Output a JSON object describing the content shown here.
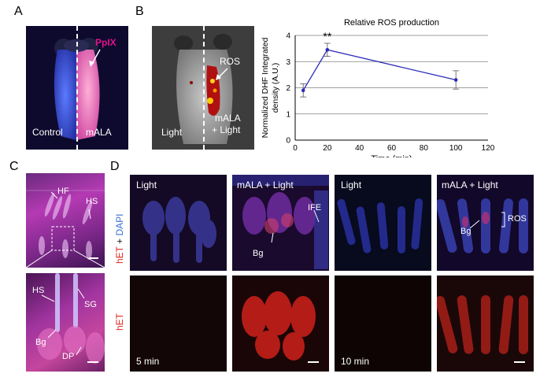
{
  "panels": {
    "A": {
      "label": "A",
      "ppix": "PpIX",
      "control": "Control",
      "treated": "mALA"
    },
    "B": {
      "label": "B",
      "ros": "ROS",
      "light": "Light",
      "treated_line1": "mALA",
      "treated_line2": "+ Light"
    },
    "C": {
      "label": "C",
      "hf": "HF",
      "hs": "HS",
      "hs2": "HS",
      "sg": "SG",
      "bg": "Bg",
      "dp": "DP"
    },
    "D": {
      "label": "D",
      "col1": "Light",
      "col2": "mALA + Light",
      "col3": "Light",
      "col4": "mALA + Light",
      "ife": "IFE",
      "bg1": "Bg",
      "bg2": "Bg",
      "ros": "ROS",
      "row1_label_red": "hET",
      "row1_label_plus": " + ",
      "row1_label_blue": "DAPI",
      "row2_label": "hET",
      "time1": "5 min",
      "time2": "10 min"
    }
  },
  "colors": {
    "pink": "#e0118a",
    "line": "#2b2bb8",
    "red_label": "#e0261d",
    "blue_label": "#3b6fd6"
  },
  "chart_data": {
    "type": "line",
    "title": "Relative ROS production",
    "xlabel": "Time (min)",
    "ylabel_line1": "Normalized DHF Integrated",
    "ylabel_line2": "density (A.U.)",
    "xlim": [
      0,
      120
    ],
    "ylim": [
      0,
      4
    ],
    "xticks": [
      0,
      20,
      40,
      60,
      80,
      100,
      120
    ],
    "yticks": [
      0,
      1,
      2,
      3,
      4
    ],
    "series": [
      {
        "name": "ROS",
        "x": [
          5,
          20,
          100
        ],
        "y": [
          1.9,
          3.45,
          2.3
        ],
        "err": [
          0.25,
          0.25,
          0.35
        ]
      }
    ],
    "annotation": {
      "text": "**",
      "x": 20
    }
  }
}
